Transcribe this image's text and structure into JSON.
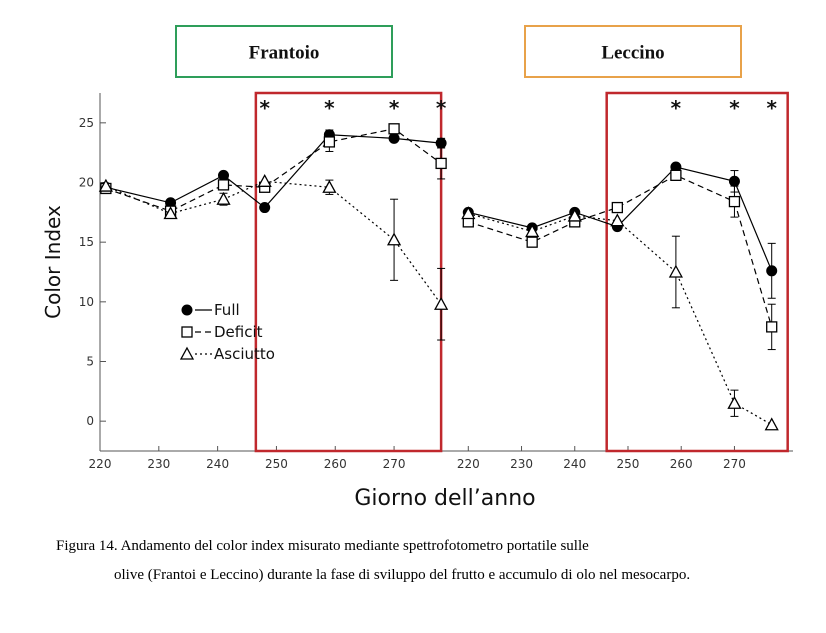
{
  "chart_data": {
    "type": "line",
    "ylabel": "Color Index",
    "xlabel": "Giorno dell’anno",
    "ylim": [
      -2.5,
      27.5
    ],
    "yticks": [
      0,
      5,
      10,
      15,
      20,
      25
    ],
    "xticks": [
      220,
      230,
      240,
      250,
      260,
      270
    ],
    "legend": {
      "placement": "lower-left of left panel",
      "entries": [
        "Full",
        "Deficit",
        "Asciutto"
      ]
    },
    "panels": [
      {
        "title": "Frantoio",
        "title_box_color": "#2e9e5a",
        "highlight_range": [
          246.5,
          278
        ],
        "highlight_color": "#c0282d",
        "significance_days": [
          248,
          259,
          270,
          278
        ],
        "series": [
          {
            "name": "Full",
            "line": "solid",
            "marker": "filled-circle",
            "points": [
              [
                221,
                19.6
              ],
              [
                232,
                18.3
              ],
              [
                241,
                20.6
              ],
              [
                248,
                17.9
              ],
              [
                259,
                24.0
              ],
              [
                270,
                23.7
              ],
              [
                278,
                23.3
              ]
            ],
            "err": [
              0,
              0,
              0,
              0,
              0.4,
              0,
              0.4
            ]
          },
          {
            "name": "Deficit",
            "line": "dashed",
            "marker": "open-square",
            "points": [
              [
                221,
                19.5
              ],
              [
                232,
                17.6
              ],
              [
                241,
                19.8
              ],
              [
                248,
                19.6
              ],
              [
                259,
                23.4
              ],
              [
                270,
                24.5
              ],
              [
                278,
                21.6
              ]
            ],
            "err": [
              0,
              0,
              0,
              0,
              0.8,
              0.4,
              1.3
            ]
          },
          {
            "name": "Asciutto",
            "line": "dotted",
            "marker": "open-triangle",
            "points": [
              [
                221,
                19.7
              ],
              [
                232,
                17.4
              ],
              [
                241,
                18.6
              ],
              [
                248,
                20.1
              ],
              [
                259,
                19.6
              ],
              [
                270,
                15.2
              ],
              [
                278,
                9.8
              ]
            ],
            "err": [
              0,
              0,
              0.5,
              0,
              0.6,
              3.4,
              3.0
            ]
          }
        ]
      },
      {
        "title": "Leccino",
        "title_box_color": "#e8a24a",
        "highlight_range": [
          246,
          280
        ],
        "highlight_color": "#c0282d",
        "significance_days": [
          259,
          270,
          277
        ],
        "series": [
          {
            "name": "Full",
            "line": "solid",
            "marker": "filled-circle",
            "points": [
              [
                220,
                17.5
              ],
              [
                232,
                16.2
              ],
              [
                240,
                17.5
              ],
              [
                248,
                16.3
              ],
              [
                259,
                21.3
              ],
              [
                270,
                20.1
              ],
              [
                277,
                12.6
              ]
            ],
            "err": [
              0,
              0,
              0,
              0,
              0,
              0.9,
              2.3
            ]
          },
          {
            "name": "Deficit",
            "line": "dashed",
            "marker": "open-square",
            "points": [
              [
                220,
                16.7
              ],
              [
                232,
                15.0
              ],
              [
                240,
                16.7
              ],
              [
                248,
                17.9
              ],
              [
                259,
                20.6
              ],
              [
                270,
                18.4
              ],
              [
                277,
                7.9
              ]
            ],
            "err": [
              0,
              0,
              0,
              0,
              0,
              1.3,
              1.9
            ]
          },
          {
            "name": "Asciutto",
            "line": "dotted",
            "marker": "open-triangle",
            "points": [
              [
                220,
                17.4
              ],
              [
                232,
                15.9
              ],
              [
                240,
                17.2
              ],
              [
                248,
                16.8
              ],
              [
                259,
                12.5
              ],
              [
                270,
                1.5
              ],
              [
                277,
                -0.3
              ]
            ],
            "err": [
              0,
              0,
              0,
              0,
              3.0,
              1.1,
              0
            ]
          }
        ]
      }
    ]
  },
  "caption": {
    "line1": "Figura 14. Andamento del color index misurato mediante spettrofotometro portatile sulle",
    "rest": "olive (Frantoi e Leccino) durante la fase di sviluppo del frutto e accumulo di olo nel mesocarpo."
  }
}
